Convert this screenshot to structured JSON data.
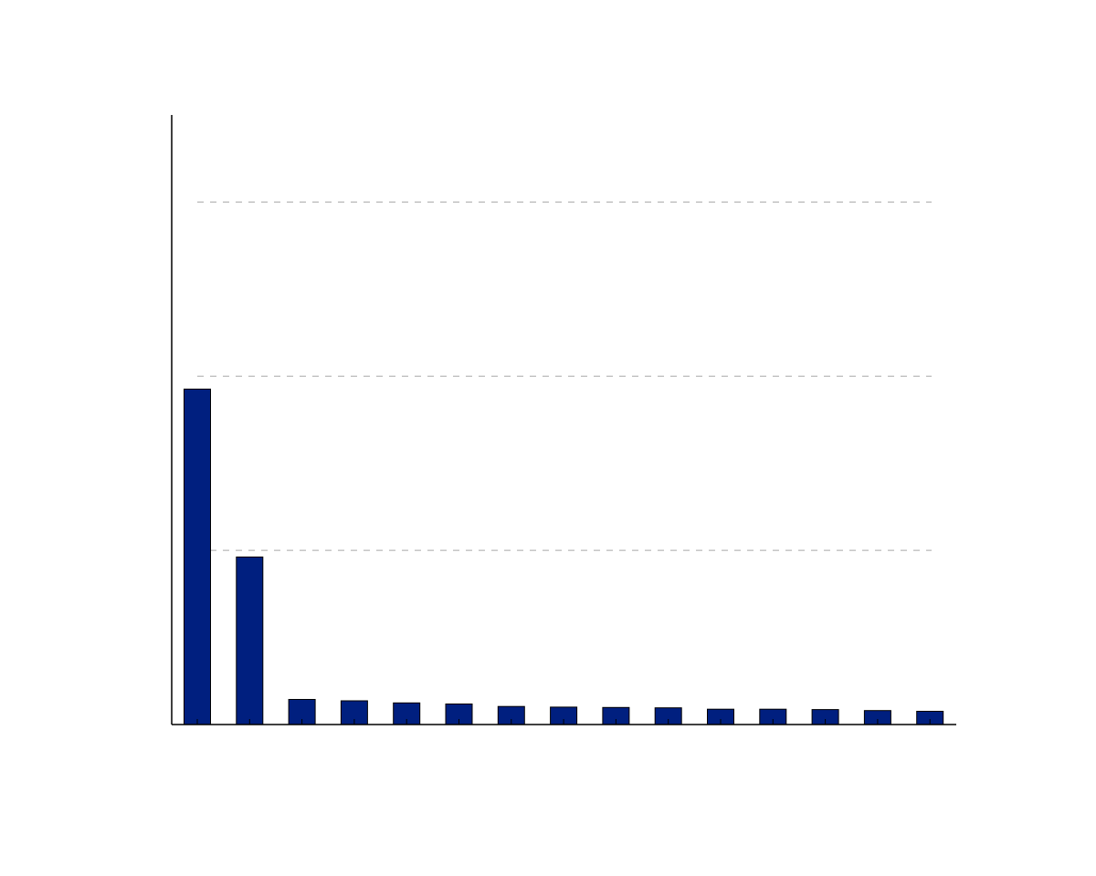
{
  "chart_data": {
    "type": "bar",
    "categories": [
      "",
      "",
      "",
      "",
      "",
      "",
      "",
      "",
      "",
      "",
      "",
      "",
      "",
      "",
      ""
    ],
    "values": [
      0.963,
      0.481,
      0.072,
      0.068,
      0.062,
      0.059,
      0.052,
      0.05,
      0.049,
      0.048,
      0.044,
      0.044,
      0.043,
      0.04,
      0.038
    ],
    "title": "",
    "xlabel": "",
    "ylabel": "",
    "ylim": [
      0,
      1.75
    ],
    "gridlines": [
      0.5,
      1.0,
      1.5
    ],
    "grid": true,
    "grid_style": "dashed",
    "bar_color": "#001f7f",
    "edge_color": "#000000",
    "grid_color": "#a8a8a8",
    "axis_color": "#000000"
  }
}
